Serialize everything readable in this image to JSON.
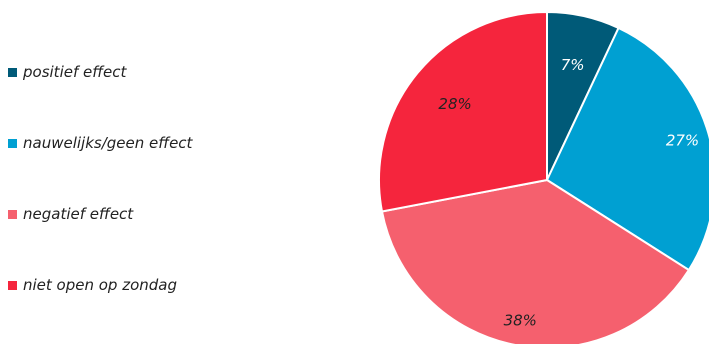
{
  "chart_data": {
    "type": "pie",
    "categories": [
      "positief effect",
      "nauwelijks/geen effect",
      "negatief effect",
      "niet open op zondag"
    ],
    "values": [
      7,
      27,
      38,
      28
    ],
    "value_labels": [
      "7%",
      "27%",
      "38%",
      "28%"
    ],
    "colors": [
      "#005a78",
      "#00a0d2",
      "#f5606e",
      "#f5253d"
    ],
    "label_colors": [
      "#ffffff",
      "#ffffff",
      "#222222",
      "#222222"
    ],
    "start_angle_deg": 0,
    "direction": "clockwise",
    "legend_position": "left"
  }
}
